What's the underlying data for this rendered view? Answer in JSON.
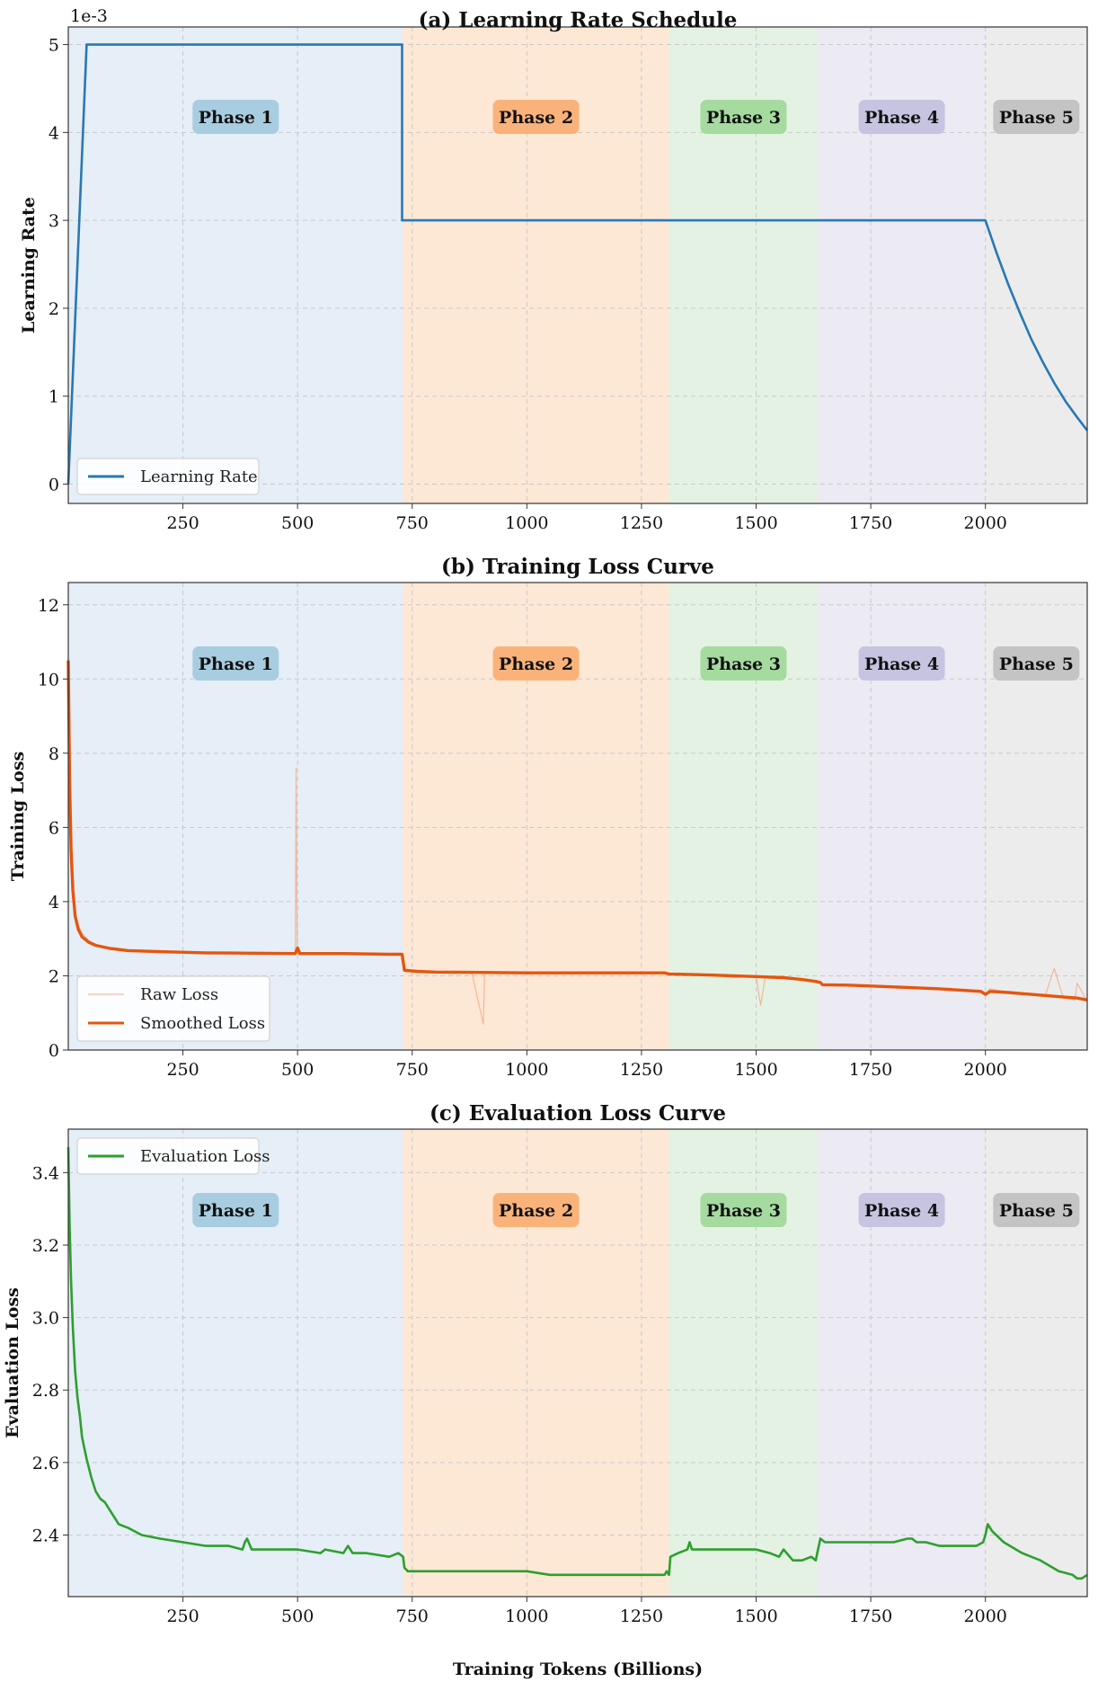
{
  "figure": {
    "xlabel": "Training Tokens (Billions)"
  },
  "phases": [
    {
      "label": "Phase 1",
      "start": 0,
      "end": 730,
      "bg": "#e6eef7",
      "badge": "#a9cde0"
    },
    {
      "label": "Phase 2",
      "start": 730,
      "end": 1310,
      "bg": "#fde8d6",
      "badge": "#f9b37a"
    },
    {
      "label": "Phase 3",
      "start": 1310,
      "end": 1635,
      "bg": "#e4f2e3",
      "badge": "#a6dba0"
    },
    {
      "label": "Phase 4",
      "start": 1635,
      "end": 2000,
      "bg": "#eceaf3",
      "badge": "#c6c4e0"
    },
    {
      "label": "Phase 5",
      "start": 2000,
      "end": 2222,
      "bg": "#ececec",
      "badge": "#c4c4c4"
    }
  ],
  "chart_data": [
    {
      "type": "line",
      "title": "(a) Learning Rate Schedule",
      "ylabel": "Learning Rate",
      "y_multiplier_label": "1e-3",
      "xlim": [
        0,
        2222
      ],
      "ylim": [
        -0.22,
        5.2
      ],
      "xticks": [
        250,
        500,
        750,
        1000,
        1250,
        1500,
        1750,
        2000
      ],
      "yticks": [
        0,
        1,
        2,
        3,
        4,
        5
      ],
      "legend": "bottom-left",
      "series": [
        {
          "name": "Learning Rate",
          "color": "#2878b5",
          "x": [
            0,
            40,
            728,
            728,
            2000,
            2025,
            2050,
            2075,
            2100,
            2125,
            2150,
            2175,
            2200,
            2222
          ],
          "y": [
            0,
            5,
            5,
            3,
            3,
            2.62,
            2.27,
            1.95,
            1.65,
            1.39,
            1.15,
            0.94,
            0.76,
            0.61
          ]
        }
      ]
    },
    {
      "type": "line",
      "title": "(b) Training Loss Curve",
      "ylabel": "Training Loss",
      "xlim": [
        0,
        2222
      ],
      "ylim": [
        0,
        12.6
      ],
      "xticks": [
        250,
        500,
        750,
        1000,
        1250,
        1500,
        1750,
        2000
      ],
      "yticks": [
        0,
        2,
        4,
        6,
        8,
        10,
        12
      ],
      "legend": "bottom-left",
      "series": [
        {
          "name": "Raw Loss",
          "color": "#f4a582",
          "x": [
            0,
            3,
            6,
            10,
            15,
            22,
            30,
            45,
            60,
            90,
            130,
            200,
            300,
            400,
            495,
            497,
            499,
            502,
            600,
            700,
            728,
            733,
            760,
            800,
            880,
            905,
            908,
            1000,
            1100,
            1200,
            1300,
            1310,
            1400,
            1450,
            1500,
            1510,
            1520,
            1600,
            1640,
            1645,
            1700,
            1800,
            1900,
            1990,
            2000,
            2010,
            2050,
            2090,
            2130,
            2150,
            2170,
            2195,
            2200,
            2222
          ],
          "y": [
            10.5,
            7.6,
            5.6,
            4.4,
            3.7,
            3.35,
            3.15,
            2.95,
            2.85,
            2.75,
            2.68,
            2.65,
            2.62,
            2.61,
            2.6,
            7.6,
            2.6,
            2.58,
            2.6,
            2.58,
            2.58,
            2.15,
            2.12,
            2.1,
            2.09,
            0.7,
            2.09,
            2.08,
            2.08,
            2.08,
            2.08,
            2.05,
            2.02,
            1.95,
            2.0,
            1.2,
            1.98,
            1.9,
            1.82,
            1.75,
            1.75,
            1.7,
            1.66,
            1.58,
            1.48,
            1.65,
            1.55,
            1.5,
            1.45,
            2.2,
            1.4,
            1.35,
            1.8,
            1.3
          ]
        },
        {
          "name": "Smoothed Loss",
          "color": "#e6550d",
          "x": [
            0,
            3,
            6,
            10,
            15,
            22,
            30,
            45,
            60,
            90,
            130,
            200,
            300,
            400,
            495,
            500,
            505,
            600,
            700,
            728,
            733,
            760,
            800,
            900,
            1000,
            1100,
            1200,
            1300,
            1310,
            1400,
            1500,
            1560,
            1600,
            1630,
            1640,
            1645,
            1700,
            1800,
            1900,
            1990,
            2000,
            2010,
            2050,
            2100,
            2150,
            2200,
            2222
          ],
          "y": [
            10.5,
            7.2,
            5.4,
            4.3,
            3.6,
            3.25,
            3.05,
            2.9,
            2.82,
            2.74,
            2.68,
            2.65,
            2.62,
            2.61,
            2.6,
            2.75,
            2.6,
            2.6,
            2.58,
            2.58,
            2.15,
            2.12,
            2.1,
            2.09,
            2.08,
            2.08,
            2.08,
            2.08,
            2.05,
            2.02,
            1.98,
            1.95,
            1.9,
            1.85,
            1.82,
            1.76,
            1.75,
            1.7,
            1.65,
            1.58,
            1.5,
            1.58,
            1.55,
            1.5,
            1.45,
            1.4,
            1.35
          ]
        }
      ]
    },
    {
      "type": "line",
      "title": "(c) Evaluation Loss Curve",
      "ylabel": "Evaluation Loss",
      "xlim": [
        0,
        2222
      ],
      "ylim": [
        2.23,
        3.52
      ],
      "xticks": [
        250,
        500,
        750,
        1000,
        1250,
        1500,
        1750,
        2000
      ],
      "yticks": [
        2.4,
        2.6,
        2.8,
        3.0,
        3.2,
        3.4
      ],
      "legend": "top-left",
      "series": [
        {
          "name": "Evaluation Loss",
          "color": "#2ca02c",
          "x": [
            0,
            3,
            6,
            10,
            15,
            20,
            25,
            30,
            40,
            50,
            60,
            70,
            80,
            90,
            100,
            110,
            130,
            160,
            200,
            250,
            300,
            350,
            380,
            385,
            390,
            400,
            450,
            500,
            550,
            560,
            600,
            610,
            620,
            650,
            700,
            720,
            730,
            733,
            740,
            760,
            800,
            850,
            900,
            950,
            1000,
            1050,
            1100,
            1150,
            1200,
            1250,
            1300,
            1305,
            1310,
            1313,
            1330,
            1350,
            1355,
            1360,
            1380,
            1400,
            1450,
            1500,
            1530,
            1550,
            1560,
            1580,
            1600,
            1620,
            1630,
            1635,
            1640,
            1650,
            1700,
            1750,
            1800,
            1830,
            1840,
            1850,
            1870,
            1900,
            1950,
            1980,
            1995,
            2000,
            2005,
            2015,
            2040,
            2080,
            2120,
            2160,
            2190,
            2200,
            2210,
            2222
          ],
          "y": [
            3.47,
            3.25,
            3.1,
            2.97,
            2.85,
            2.78,
            2.73,
            2.67,
            2.61,
            2.56,
            2.52,
            2.5,
            2.49,
            2.47,
            2.45,
            2.43,
            2.42,
            2.4,
            2.39,
            2.38,
            2.37,
            2.37,
            2.36,
            2.38,
            2.39,
            2.36,
            2.36,
            2.36,
            2.35,
            2.36,
            2.35,
            2.37,
            2.35,
            2.35,
            2.34,
            2.35,
            2.34,
            2.31,
            2.3,
            2.3,
            2.3,
            2.3,
            2.3,
            2.3,
            2.3,
            2.29,
            2.29,
            2.29,
            2.29,
            2.29,
            2.29,
            2.3,
            2.29,
            2.34,
            2.35,
            2.36,
            2.38,
            2.36,
            2.36,
            2.36,
            2.36,
            2.36,
            2.35,
            2.34,
            2.36,
            2.33,
            2.33,
            2.34,
            2.33,
            2.36,
            2.39,
            2.38,
            2.38,
            2.38,
            2.38,
            2.39,
            2.39,
            2.38,
            2.38,
            2.37,
            2.37,
            2.37,
            2.38,
            2.4,
            2.43,
            2.41,
            2.38,
            2.35,
            2.33,
            2.3,
            2.29,
            2.28,
            2.28,
            2.29
          ]
        }
      ]
    }
  ]
}
